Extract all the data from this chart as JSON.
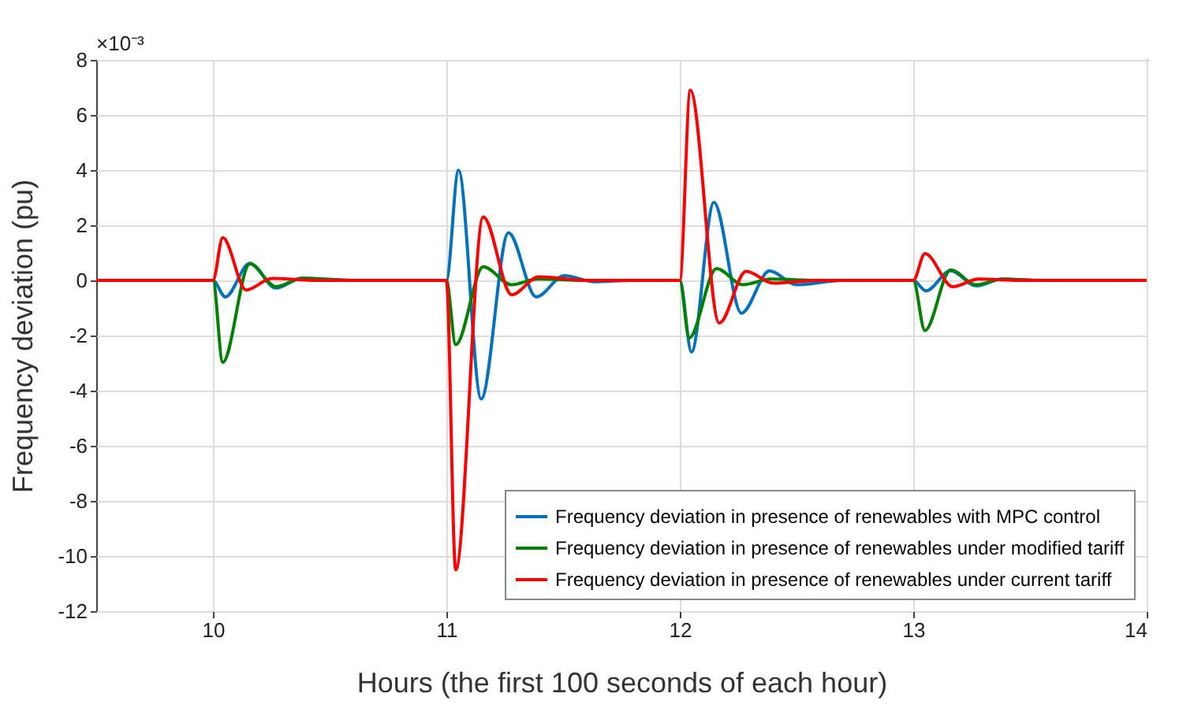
{
  "chart_data": {
    "type": "line",
    "xlabel": "Hours (the first 100 seconds of each hour)",
    "ylabel": "Frequency deviation (pu)",
    "annotations": [
      "×10⁻³"
    ],
    "xlim": [
      9.5,
      14
    ],
    "xticks": [
      10,
      11,
      12,
      13,
      14
    ],
    "ylim": [
      -12,
      8
    ],
    "yticks": [
      -12,
      -10,
      -8,
      -6,
      -4,
      -2,
      0,
      2,
      4,
      6,
      8
    ],
    "grid": true,
    "legend": "bottom right",
    "series": [
      {
        "name": "Frequency deviation in presence of renewables with MPC control",
        "color": "#0072bd",
        "x": [
          9.5,
          10,
          10.053,
          10.158,
          10.27,
          10.38,
          10.6,
          11,
          11.052,
          11.149,
          11.266,
          11.385,
          11.505,
          11.635,
          11.8,
          12,
          12.05,
          12.146,
          12.264,
          12.384,
          12.5,
          12.7,
          13,
          13.055,
          13.16,
          13.27,
          13.38,
          13.55,
          14
        ],
        "values": [
          0,
          0,
          -0.6,
          0.62,
          -0.28,
          0.08,
          0,
          0,
          4.0,
          -4.3,
          1.73,
          -0.6,
          0.17,
          -0.05,
          0,
          0,
          -2.6,
          2.83,
          -1.19,
          0.34,
          -0.16,
          0,
          0,
          -0.38,
          0.35,
          -0.2,
          0.05,
          0,
          0
        ]
      },
      {
        "name": "Frequency deviation in presence of renewables under modified tariff",
        "color": "#008000",
        "x": [
          9.5,
          10,
          10.042,
          10.158,
          10.27,
          10.38,
          10.6,
          11,
          11.04,
          11.158,
          11.28,
          11.39,
          11.6,
          12,
          12.04,
          12.157,
          12.27,
          12.39,
          12.6,
          13,
          13.05,
          13.16,
          13.27,
          13.38,
          13.55,
          14
        ],
        "values": [
          0,
          0,
          -2.97,
          0.6,
          -0.23,
          0.07,
          0,
          0,
          -2.33,
          0.49,
          -0.16,
          0.05,
          0,
          0,
          -2.09,
          0.43,
          -0.16,
          0.05,
          0,
          0,
          -1.82,
          0.38,
          -0.16,
          0.04,
          0,
          0
        ]
      },
      {
        "name": "Frequency deviation in presence of renewables under current tariff",
        "color": "#ff0000",
        "x": [
          9.5,
          10,
          10.042,
          10.142,
          10.253,
          10.45,
          11,
          11.04,
          11.158,
          11.28,
          11.395,
          11.6,
          12,
          12.045,
          12.169,
          12.284,
          12.4,
          12.6,
          13,
          13.05,
          13.17,
          13.28,
          13.45,
          14
        ],
        "values": [
          0,
          0,
          1.55,
          -0.35,
          0.07,
          0,
          0,
          -10.5,
          2.3,
          -0.52,
          0.13,
          0,
          0,
          6.9,
          -1.55,
          0.33,
          -0.1,
          0,
          0,
          0.97,
          -0.23,
          0.05,
          0,
          0
        ]
      }
    ]
  }
}
